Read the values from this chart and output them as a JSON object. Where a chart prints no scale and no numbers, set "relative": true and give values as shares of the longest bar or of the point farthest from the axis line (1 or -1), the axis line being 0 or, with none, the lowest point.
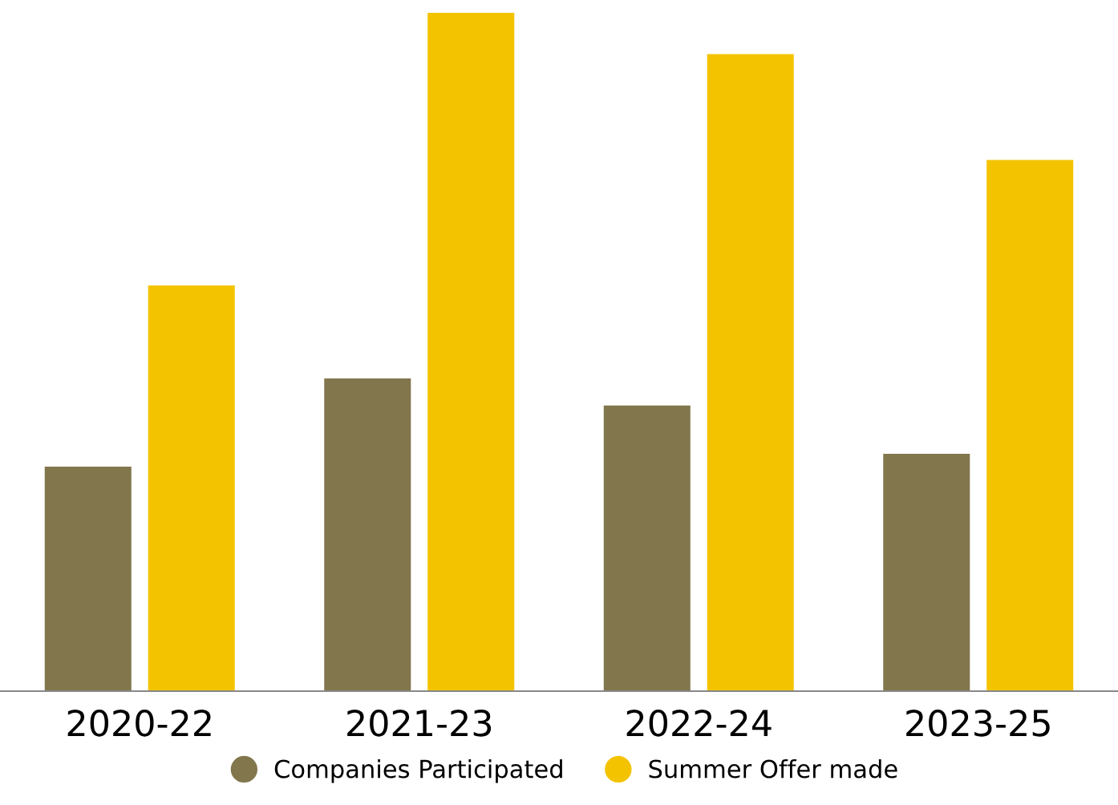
{
  "chart_data": {
    "type": "bar",
    "relative": true,
    "categories": [
      "2020-22",
      "2021-23",
      "2022-24",
      "2023-25"
    ],
    "series": [
      {
        "name": "Companies Participated",
        "color": "#82764d",
        "values": [
          0.331,
          0.461,
          0.421,
          0.35
        ]
      },
      {
        "name": "Summer Offer made",
        "color": "#f4c300",
        "values": [
          0.598,
          1,
          0.939,
          0.783
        ]
      }
    ],
    "legend": "bottom",
    "grid": false
  }
}
